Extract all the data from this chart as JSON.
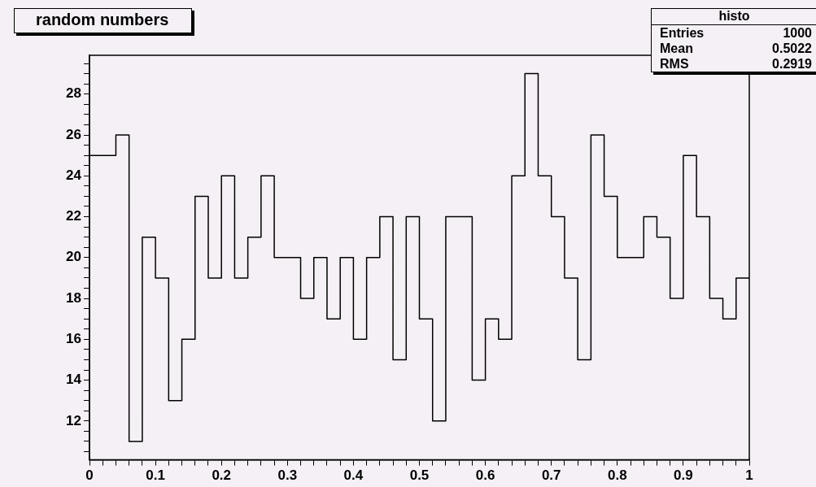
{
  "chart_data": {
    "type": "histogram",
    "title": "random numbers",
    "bins": [
      0,
      0.02,
      0.04,
      0.06,
      0.08,
      0.1,
      0.12,
      0.14,
      0.16,
      0.18,
      0.2,
      0.22,
      0.24,
      0.26,
      0.28,
      0.3,
      0.32,
      0.34,
      0.36,
      0.38,
      0.4,
      0.42,
      0.44,
      0.46,
      0.48,
      0.5,
      0.52,
      0.54,
      0.56,
      0.58,
      0.6,
      0.62,
      0.64,
      0.66,
      0.68,
      0.7,
      0.72,
      0.74,
      0.76,
      0.78,
      0.8,
      0.82,
      0.84,
      0.86,
      0.88,
      0.9,
      0.92,
      0.94,
      0.96,
      0.98,
      1
    ],
    "values": [
      25,
      25,
      26,
      11,
      21,
      19,
      13,
      16,
      23,
      19,
      24,
      19,
      21,
      24,
      20,
      20,
      18,
      20,
      17,
      20,
      16,
      20,
      22,
      15,
      22,
      17,
      12,
      22,
      22,
      14,
      17,
      16,
      24,
      29,
      24,
      22,
      19,
      15,
      26,
      23,
      20,
      20,
      22,
      21,
      18,
      25,
      22,
      18,
      17,
      19
    ],
    "color": "#000000",
    "xlim": [
      0,
      1
    ],
    "ylim": [
      10.1,
      29.9
    ],
    "xticks": [
      0,
      {
        "value": 0.02,
        "label": null
      },
      {
        "value": 0.04,
        "label": null
      },
      {
        "value": 0.06,
        "label": null
      },
      {
        "value": 0.08,
        "label": null
      },
      0.1,
      {
        "value": 0.12,
        "label": null
      },
      {
        "value": 0.14,
        "label": null
      },
      {
        "value": 0.16,
        "label": null
      },
      {
        "value": 0.18,
        "label": null
      },
      0.2,
      {
        "value": 0.22,
        "label": null
      },
      {
        "value": 0.24,
        "label": null
      },
      {
        "value": 0.26,
        "label": null
      },
      {
        "value": 0.28,
        "label": null
      },
      0.3,
      {
        "value": 0.32,
        "label": null
      },
      {
        "value": 0.34,
        "label": null
      },
      {
        "value": 0.36,
        "label": null
      },
      {
        "value": 0.38,
        "label": null
      },
      0.4,
      {
        "value": 0.42,
        "label": null
      },
      {
        "value": 0.44,
        "label": null
      },
      {
        "value": 0.46,
        "label": null
      },
      {
        "value": 0.48,
        "label": null
      },
      0.5,
      {
        "value": 0.52,
        "label": null
      },
      {
        "value": 0.54,
        "label": null
      },
      {
        "value": 0.56,
        "label": null
      },
      {
        "value": 0.58,
        "label": null
      },
      0.6,
      {
        "value": 0.62,
        "label": null
      },
      {
        "value": 0.64,
        "label": null
      },
      {
        "value": 0.66,
        "label": null
      },
      {
        "value": 0.68,
        "label": null
      },
      0.7,
      {
        "value": 0.72,
        "label": null
      },
      {
        "value": 0.74,
        "label": null
      },
      {
        "value": 0.76,
        "label": null
      },
      {
        "value": 0.78,
        "label": null
      },
      0.8,
      {
        "value": 0.82,
        "label": null
      },
      {
        "value": 0.84,
        "label": null
      },
      {
        "value": 0.86,
        "label": null
      },
      {
        "value": 0.88,
        "label": null
      },
      0.9,
      {
        "value": 0.92,
        "label": null
      },
      {
        "value": 0.94,
        "label": null
      },
      {
        "value": 0.96,
        "label": null
      },
      {
        "value": 0.98,
        "label": null
      },
      1
    ],
    "yticks": [
      {
        "value": 10.5,
        "label": null
      },
      {
        "value": 11,
        "label": null
      },
      {
        "value": 11.5,
        "label": null
      },
      12,
      {
        "value": 12.5,
        "label": null
      },
      {
        "value": 13,
        "label": null
      },
      {
        "value": 13.5,
        "label": null
      },
      14,
      {
        "value": 14.5,
        "label": null
      },
      {
        "value": 15,
        "label": null
      },
      {
        "value": 15.5,
        "label": null
      },
      16,
      {
        "value": 16.5,
        "label": null
      },
      {
        "value": 17,
        "label": null
      },
      {
        "value": 17.5,
        "label": null
      },
      18,
      {
        "value": 18.5,
        "label": null
      },
      {
        "value": 19,
        "label": null
      },
      {
        "value": 19.5,
        "label": null
      },
      20,
      {
        "value": 20.5,
        "label": null
      },
      {
        "value": 21,
        "label": null
      },
      {
        "value": 21.5,
        "label": null
      },
      22,
      {
        "value": 22.5,
        "label": null
      },
      {
        "value": 23,
        "label": null
      },
      {
        "value": 23.5,
        "label": null
      },
      24,
      {
        "value": 24.5,
        "label": null
      },
      {
        "value": 25,
        "label": null
      },
      {
        "value": 25.5,
        "label": null
      },
      26,
      {
        "value": 26.5,
        "label": null
      },
      {
        "value": 27,
        "label": null
      },
      {
        "value": 27.5,
        "label": null
      },
      28,
      {
        "value": 28.5,
        "label": null
      },
      {
        "value": 29,
        "label": null
      },
      {
        "value": 29.5,
        "label": null
      }
    ],
    "annotations": [
      "histo",
      "Entries",
      "1000",
      "Mean",
      "0.5022",
      "RMS",
      "0.2919"
    ]
  }
}
